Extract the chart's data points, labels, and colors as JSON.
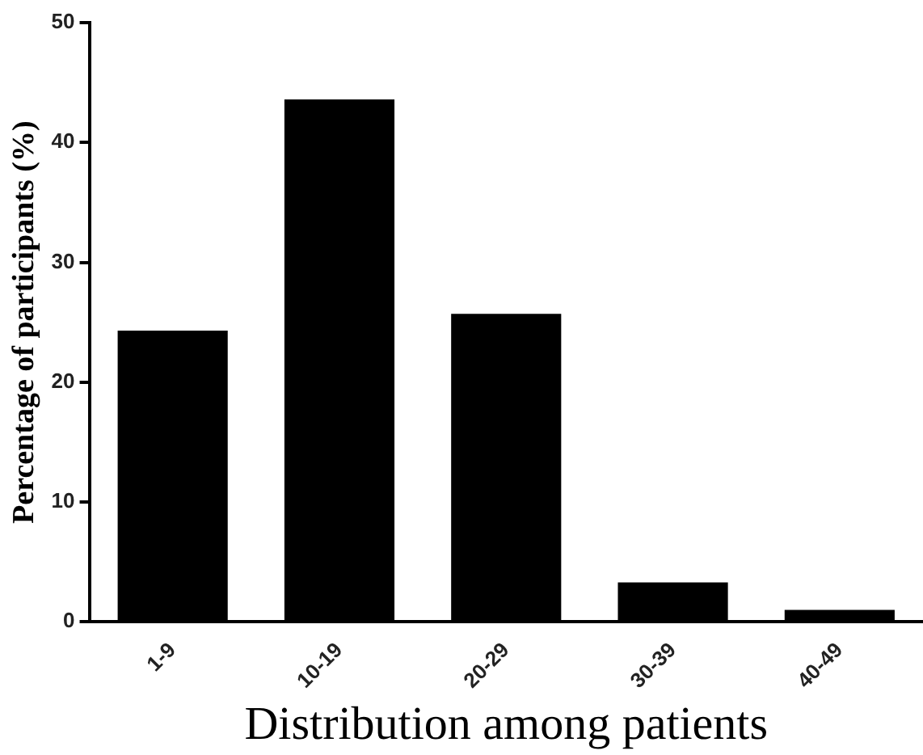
{
  "chart_data": {
    "type": "bar",
    "xlabel": "Distribution among patients",
    "ylabel": "Percentage of participants (%)",
    "categories": [
      "1-9",
      "10-19",
      "20-29",
      "30-39",
      "40-49"
    ],
    "values": [
      24.3,
      43.6,
      25.7,
      3.3,
      1.0
    ],
    "color": "#000000",
    "ylim": [
      0,
      50
    ],
    "yticks": [
      0,
      10,
      20,
      30,
      40,
      50
    ],
    "grid": false,
    "legend": false
  }
}
